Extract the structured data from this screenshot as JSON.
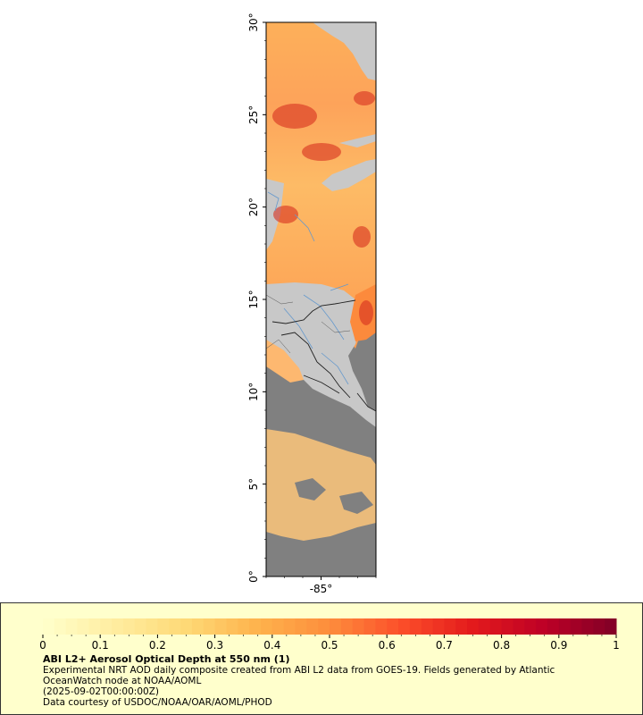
{
  "map": {
    "lat_labels": [
      "0°",
      "5°",
      "10°",
      "15°",
      "20°",
      "25°",
      "30°"
    ],
    "lat_values": [
      0,
      5,
      10,
      15,
      20,
      25,
      30
    ],
    "lon_labels": [
      "-85°"
    ],
    "lon_values": [
      -85
    ],
    "lat_range": [
      0,
      30
    ],
    "lon_range": [
      -88,
      -82
    ],
    "colors": {
      "land": "#c8c8c8",
      "ocean_no_data": "#808080",
      "rivers": "#6699cc",
      "borders": "#222222"
    }
  },
  "colorbar": {
    "ticks": [
      "0",
      "0.1",
      "0.2",
      "0.3",
      "0.4",
      "0.5",
      "0.6",
      "0.7",
      "0.8",
      "0.9",
      "1"
    ],
    "range": [
      0,
      1
    ],
    "colors": [
      "#ffffcc",
      "#ffeda0",
      "#fed976",
      "#feb24c",
      "#fd8d3c",
      "#fc4e2a",
      "#e31a1c",
      "#bd0026",
      "#800026"
    ]
  },
  "legend": {
    "title": "ABI L2+ Aerosol Optical Depth at 550 nm (1)",
    "description": "Experimental NRT AOD daily composite created from ABI L2 data from GOES-19. Fields generated by Atlantic OceanWatch node at NOAA/AOML",
    "time": "(2025-09-02T00:00:00Z)",
    "credit": "Data courtesy of USDOC/NOAA/OAR/AOML/PHOD"
  }
}
